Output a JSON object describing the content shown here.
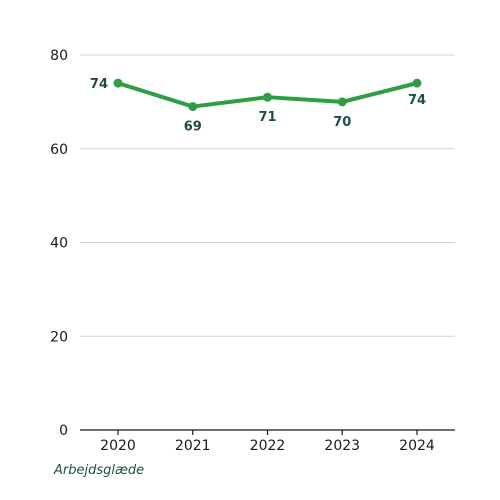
{
  "chart_data": {
    "type": "line",
    "x": [
      "2020",
      "2021",
      "2022",
      "2023",
      "2024"
    ],
    "series": [
      {
        "name": "Arbejdsglæde",
        "values": [
          74,
          69,
          71,
          70,
          74
        ]
      }
    ],
    "yticks": [
      "0",
      "20",
      "40",
      "60",
      "80"
    ],
    "ylim": [
      0,
      80
    ],
    "grid": true,
    "legend": "bottom-left"
  },
  "colors": {
    "series": "#2e9e45",
    "grid": "#d3d3d3",
    "axis": "#1a1a1a",
    "label": "#1f4e4a"
  }
}
